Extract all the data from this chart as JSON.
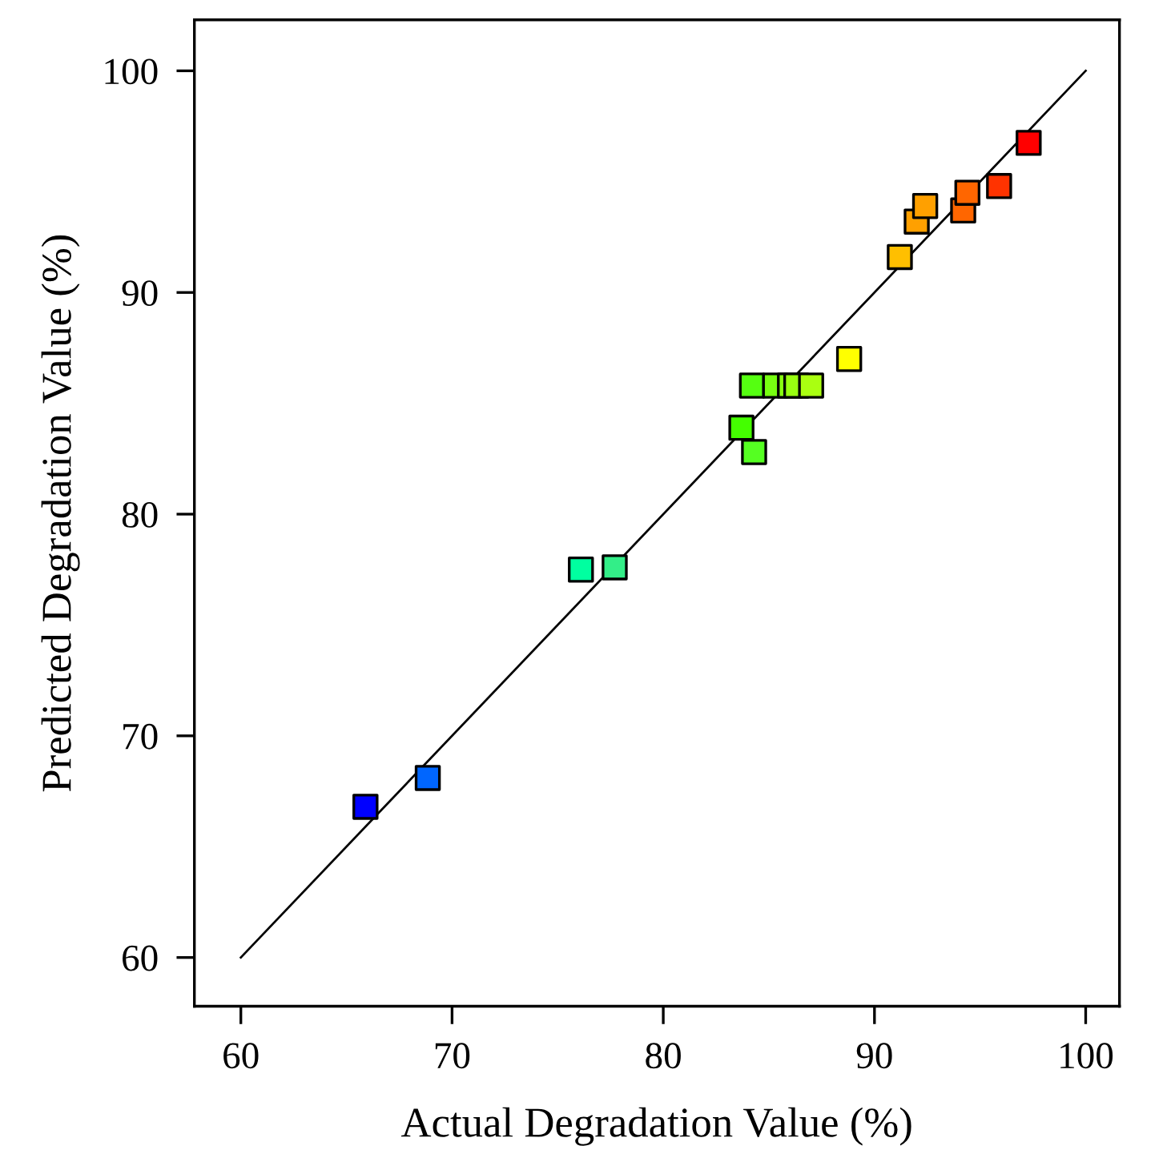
{
  "chart_data": {
    "type": "scatter",
    "xlabel": "Actual Degradation Value (%)",
    "ylabel": "Predicted Degradation Value (%)",
    "xlim": [
      57.8,
      101.6
    ],
    "ylim": [
      57.8,
      102.3
    ],
    "xticks": [
      60,
      70,
      80,
      90,
      100
    ],
    "yticks": [
      60,
      70,
      80,
      90,
      100
    ],
    "grid": false,
    "series": [
      {
        "marker": "square",
        "x": [
          65.9,
          68.85,
          76.1,
          77.7,
          83.7,
          84.3,
          84.2,
          85.3,
          86.0,
          86.3,
          87.0,
          88.8,
          91.2,
          92.0,
          92.4,
          94.2,
          94.4,
          95.9,
          97.3
        ],
        "values": [
          66.8,
          68.1,
          77.5,
          77.6,
          83.9,
          82.8,
          85.8,
          85.8,
          85.8,
          85.8,
          85.8,
          87.0,
          91.6,
          93.2,
          93.9,
          93.7,
          94.5,
          94.8,
          96.75
        ],
        "colors": [
          "#0000ff",
          "#0066ff",
          "#00ffa0",
          "#33ee88",
          "#44ff00",
          "#55ff22",
          "#55ff11",
          "#77ff11",
          "#88ff11",
          "#99ff11",
          "#aaff11",
          "#ffff00",
          "#ffbf00",
          "#ffa000",
          "#ffa000",
          "#ff6600",
          "#ff6600",
          "#ff3300",
          "#ff0000"
        ]
      },
      {
        "type": "line",
        "line_style": "solid",
        "color": "#000000",
        "x": [
          60,
          100
        ],
        "values": [
          60,
          100
        ]
      }
    ]
  }
}
